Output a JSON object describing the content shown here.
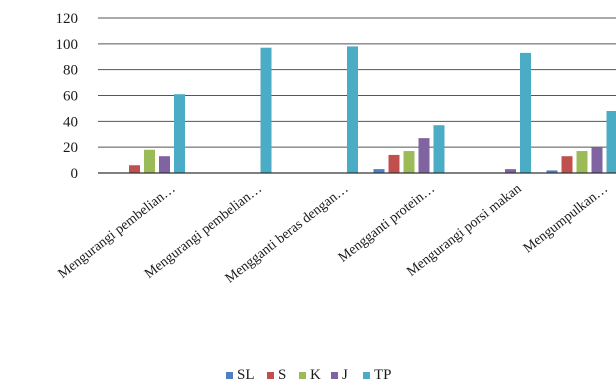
{
  "chart_data": {
    "type": "bar",
    "categories": [
      "Mengurangi pembelian…",
      "Mengurangi pembelian…",
      "Mengganti beras dengan…",
      "Mengganti protein…",
      "Mengurangi porsi makan",
      "Mengumpulkan…"
    ],
    "series": [
      {
        "name": "SL",
        "color": "#4f7fbf",
        "values": [
          0,
          0,
          0,
          3,
          0,
          2
        ]
      },
      {
        "name": "S",
        "color": "#c0504d",
        "values": [
          6,
          0,
          0,
          14,
          0,
          13
        ]
      },
      {
        "name": "K",
        "color": "#9bbb59",
        "values": [
          18,
          0,
          0,
          17,
          0,
          17
        ]
      },
      {
        "name": "J",
        "color": "#8064a2",
        "values": [
          13,
          0,
          0,
          27,
          3,
          20
        ]
      },
      {
        "name": "TP",
        "color": "#4bacc6",
        "values": [
          61,
          97,
          98,
          37,
          93,
          48
        ]
      }
    ],
    "ylim": [
      0,
      120
    ],
    "yticks": [
      0,
      20,
      40,
      60,
      80,
      100,
      120
    ],
    "grid": true,
    "legend": "bottom"
  }
}
